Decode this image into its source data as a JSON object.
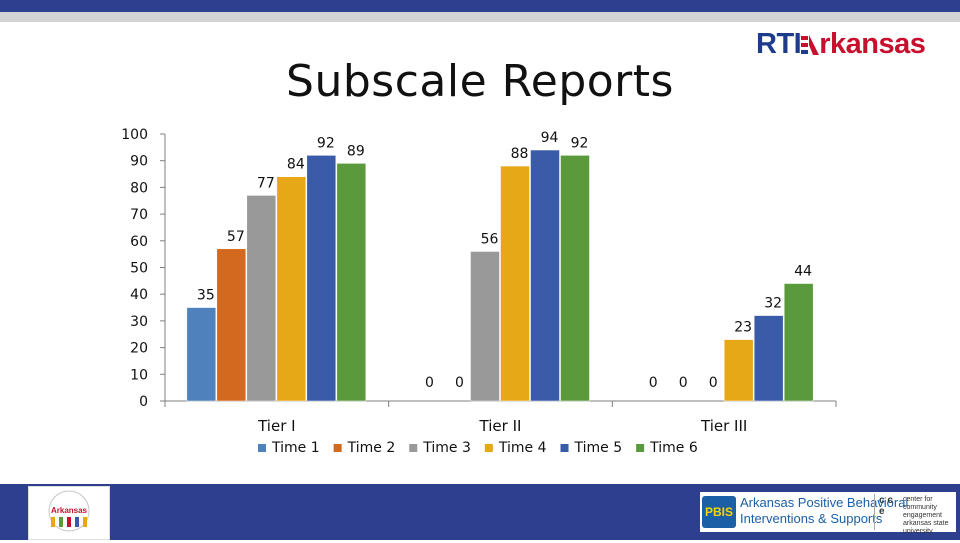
{
  "slide": {
    "title": "Subscale Reports",
    "brand": {
      "rti": "RTI",
      "arkansas": "rkansas"
    },
    "footer_logos": [
      {
        "name": "arkansas-statewide-logo",
        "text": "Arkansas"
      },
      {
        "name": "pbis-logo",
        "mark": "PBIS",
        "line1": "Arkansas Positive Behavioral",
        "line2": "Interventions & Supports"
      },
      {
        "name": "cce-logo",
        "mark": "c c e",
        "text": [
          "center for",
          "community",
          "engagement",
          "arkansas state",
          "university"
        ]
      }
    ]
  },
  "chart_data": {
    "type": "bar",
    "title": "Subscale Reports",
    "xlabel": "",
    "ylabel": "",
    "ylim": [
      0,
      100
    ],
    "yticks": [
      0,
      10,
      20,
      30,
      40,
      50,
      60,
      70,
      80,
      90,
      100
    ],
    "categories": [
      "Tier I",
      "Tier II",
      "Tier III"
    ],
    "series": [
      {
        "name": "Time 1",
        "color": "#4f81bd",
        "values": [
          35,
          0,
          0
        ],
        "labels": [
          "35",
          "0",
          "0"
        ]
      },
      {
        "name": "Time 2",
        "color": "#d2691e",
        "values": [
          57,
          0,
          0
        ],
        "labels": [
          "57",
          "0",
          "0"
        ]
      },
      {
        "name": "Time 3",
        "color": "#999999",
        "values": [
          77,
          56,
          0
        ],
        "labels": [
          "77",
          "56",
          "0"
        ]
      },
      {
        "name": "Time 4",
        "color": "#e6a817",
        "values": [
          84,
          88,
          23
        ],
        "labels": [
          "84",
          "88",
          "23"
        ]
      },
      {
        "name": "Time 5",
        "color": "#3a5ba8",
        "values": [
          92,
          94,
          32
        ],
        "labels": [
          "92",
          "94",
          "32"
        ]
      },
      {
        "name": "Time 6",
        "color": "#5b9a3c",
        "values": [
          89,
          92,
          44
        ],
        "labels": [
          "89",
          "92",
          "44"
        ]
      }
    ],
    "legend_position": "bottom",
    "grid": false
  }
}
